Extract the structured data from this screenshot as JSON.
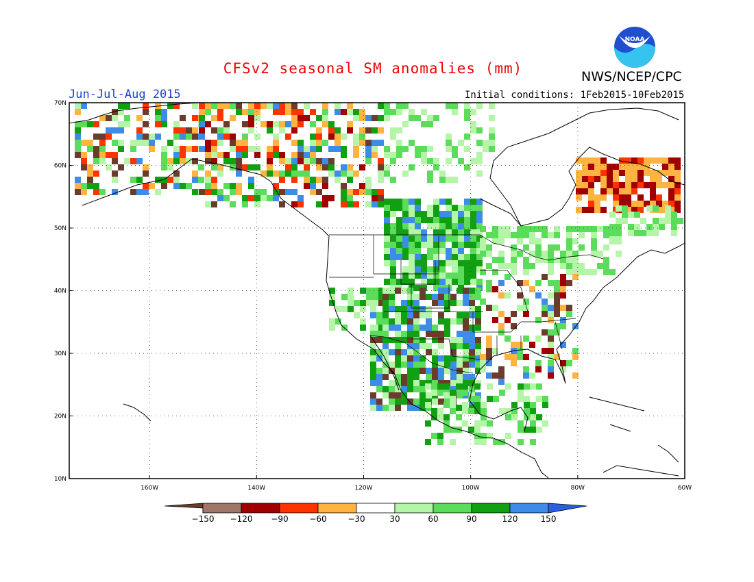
{
  "header": {
    "title": "CFSv2 seasonal SM anomalies (mm)",
    "organization": "NWS/NCEP/CPC",
    "logo_text": "NOAA",
    "period": "Jun-Jul-Aug 2015",
    "initial_conditions": "Initial conditions: 1Feb2015-10Feb2015"
  },
  "map": {
    "lon_range": [
      -175,
      -60
    ],
    "lat_range": [
      10,
      70
    ],
    "lat_ticks": [
      {
        "value": 70,
        "label": "70N"
      },
      {
        "value": 60,
        "label": "60N"
      },
      {
        "value": 50,
        "label": "50N"
      },
      {
        "value": 40,
        "label": "40N"
      },
      {
        "value": 30,
        "label": "30N"
      },
      {
        "value": 20,
        "label": "20N"
      },
      {
        "value": 10,
        "label": "10N"
      }
    ],
    "lon_ticks": [
      {
        "value": -160,
        "label": "160W"
      },
      {
        "value": -140,
        "label": "140W"
      },
      {
        "value": -120,
        "label": "120W"
      },
      {
        "value": -100,
        "label": "100W"
      },
      {
        "value": -80,
        "label": "80W"
      },
      {
        "value": -60,
        "label": "60W"
      }
    ]
  },
  "colorbar": {
    "bins": [
      {
        "color": "#6b3c2c"
      },
      {
        "color": "#a0766a"
      },
      {
        "color": "#a00000"
      },
      {
        "color": "#ff3300"
      },
      {
        "color": "#ffb340"
      },
      {
        "color": "#ffffff"
      },
      {
        "color": "#b4f5a8"
      },
      {
        "color": "#5bdc5b"
      },
      {
        "color": "#11a011"
      },
      {
        "color": "#3d8de8"
      },
      {
        "color": "#2a5fe0"
      }
    ],
    "tick_labels": [
      "−150",
      "−120",
      "−90",
      "−60",
      "−30",
      "30",
      "60",
      "90",
      "120",
      "150"
    ]
  }
}
